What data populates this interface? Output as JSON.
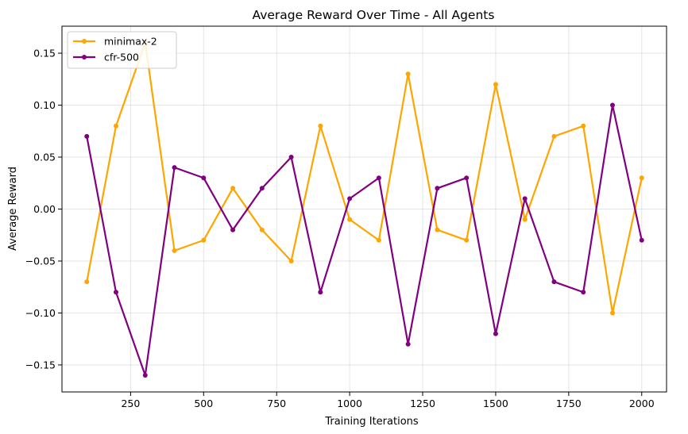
{
  "chart_data": {
    "type": "line",
    "title": "Average Reward Over Time - All Agents",
    "xlabel": "Training Iterations",
    "ylabel": "Average Reward",
    "xlim": [
      15,
      2085
    ],
    "ylim": [
      -0.176,
      0.176
    ],
    "x_ticks": [
      250,
      500,
      750,
      1000,
      1250,
      1500,
      1750,
      2000
    ],
    "x_tick_labels": [
      "250",
      "500",
      "750",
      "1000",
      "1250",
      "1500",
      "1750",
      "2000"
    ],
    "y_ticks": [
      0.15,
      0.1,
      0.05,
      0.0,
      -0.05,
      -0.1,
      -0.15
    ],
    "y_tick_labels": [
      "0.15",
      "0.10",
      "0.05",
      "0.00",
      "−0.05",
      "−0.10",
      "−0.15"
    ],
    "grid": true,
    "legend_position": "top-left",
    "x": [
      100,
      200,
      300,
      400,
      500,
      600,
      700,
      800,
      900,
      1000,
      1100,
      1200,
      1300,
      1400,
      1500,
      1600,
      1700,
      1800,
      1900,
      2000
    ],
    "series": [
      {
        "name": "minimax-2",
        "color": "#ffa500",
        "values": [
          -0.07,
          0.08,
          0.16,
          -0.04,
          -0.03,
          0.02,
          -0.02,
          -0.05,
          0.08,
          -0.01,
          -0.03,
          0.13,
          -0.02,
          -0.03,
          0.12,
          -0.01,
          0.07,
          0.08,
          -0.1,
          0.03
        ]
      },
      {
        "name": "cfr-500",
        "color": "#800080",
        "values": [
          0.07,
          -0.08,
          -0.16,
          0.04,
          0.03,
          -0.02,
          0.02,
          0.05,
          -0.08,
          0.01,
          0.03,
          -0.13,
          0.02,
          0.03,
          -0.12,
          0.01,
          -0.07,
          -0.08,
          0.1,
          -0.03
        ]
      }
    ]
  }
}
